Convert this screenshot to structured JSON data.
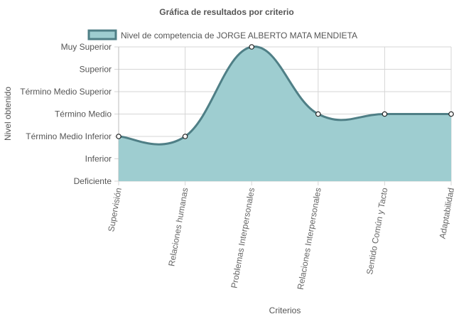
{
  "chart_data": {
    "type": "area",
    "title": "Gráfica de resultados por criterio",
    "xlabel": "Criterios",
    "ylabel": "Nivel obtenido",
    "y_levels": [
      "Deficiente",
      "Inferior",
      "Término Medio Inferior",
      "Término Medio",
      "Término Medio Superior",
      "Superior",
      "Muy Superior"
    ],
    "categories": [
      "Supervisión",
      "Relaciones humanas",
      "Problemas Interpersonales",
      "Relaciones Interpersonales",
      "Sentido Común y Tacto",
      "Adaptabilidad"
    ],
    "series": [
      {
        "name": "Nivel de competencia de JORGE ALBERTO MATA MENDIETA",
        "values": [
          2,
          2,
          6,
          3,
          3,
          3
        ],
        "fill_color": "#9ecdd0",
        "line_color": "#4f7f86"
      }
    ],
    "ylim": [
      0,
      6
    ],
    "grid": true,
    "legend_position": "top"
  }
}
